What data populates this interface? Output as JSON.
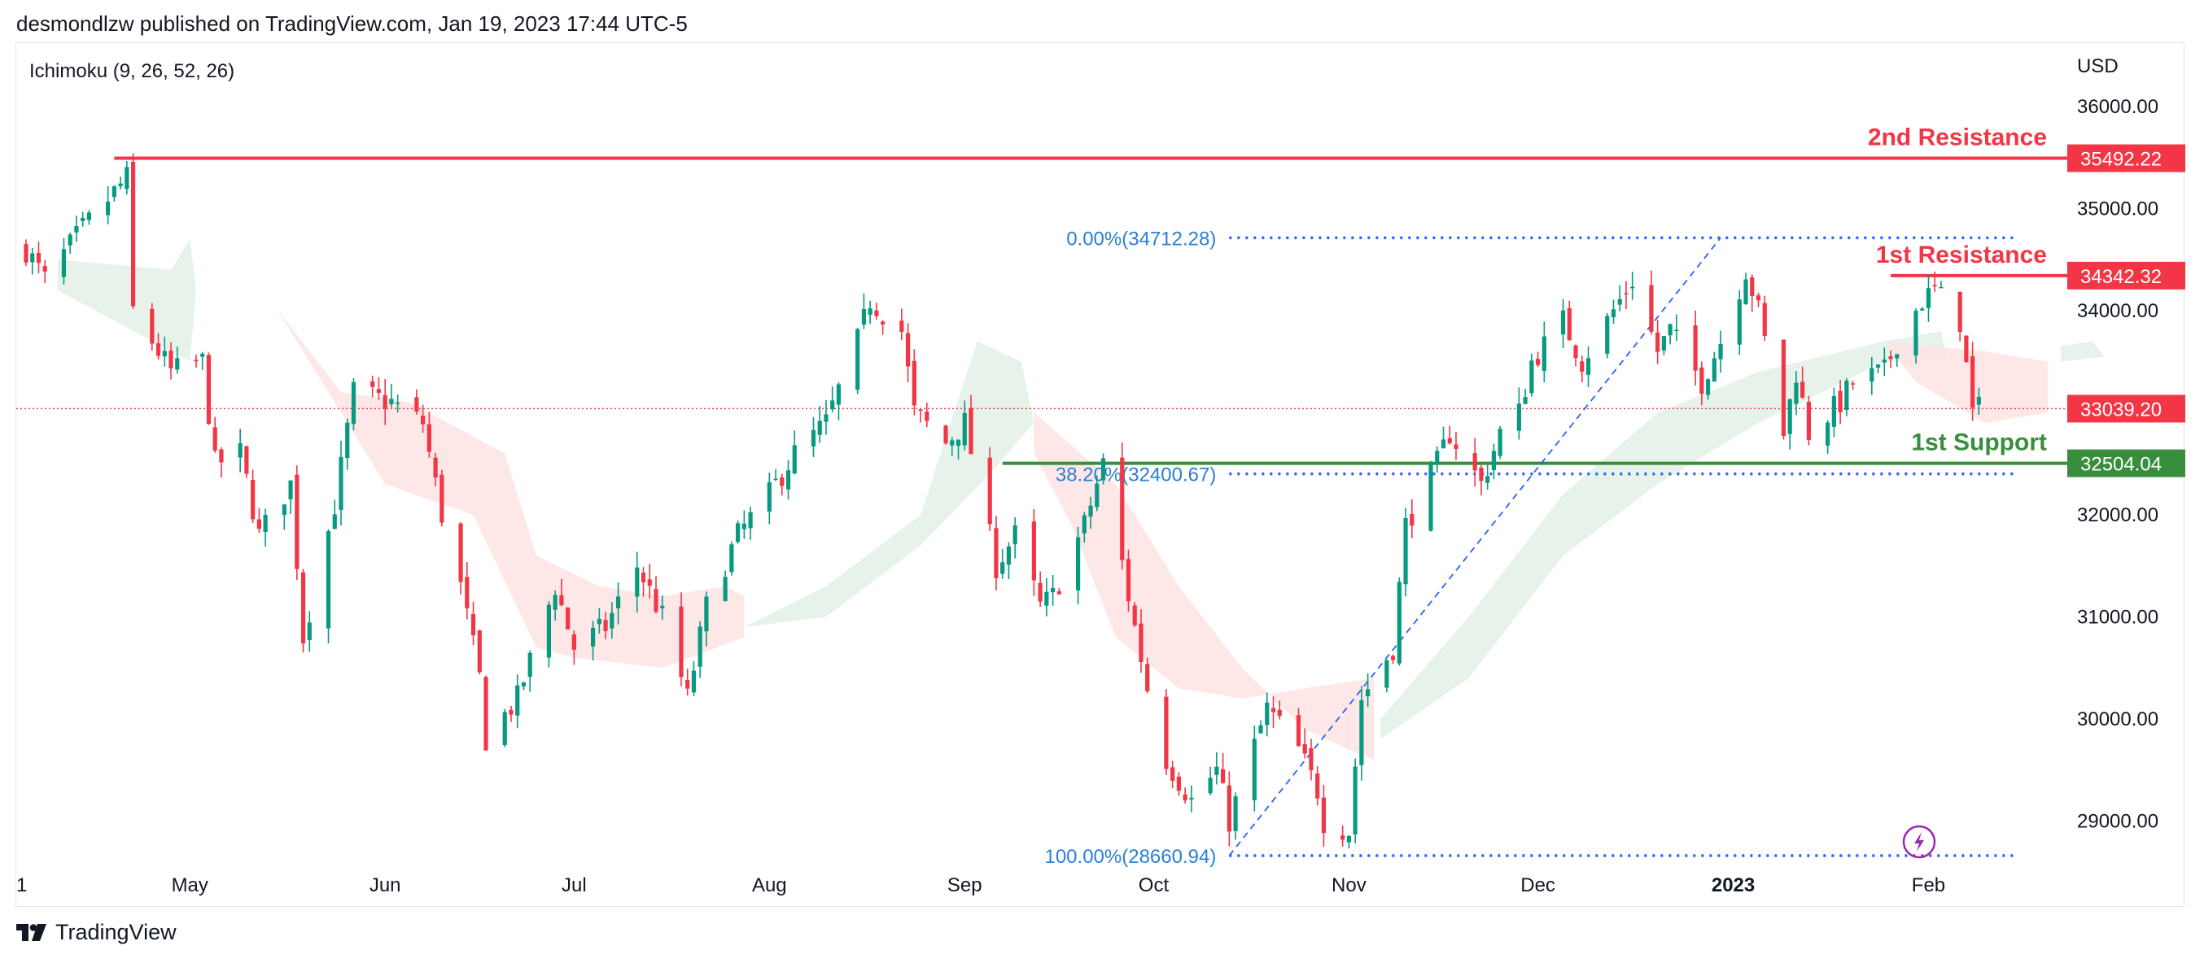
{
  "header": {
    "published": "desmondlzw published on TradingView.com, Jan 19, 2023 17:44 UTC-5"
  },
  "indicator": {
    "label": "Ichimoku (9, 26, 52, 26)"
  },
  "currency": "USD",
  "footer": {
    "brand": "TradingView",
    "logo_icon": "tradingview-logo-icon"
  },
  "colors": {
    "up": "#089981",
    "down": "#f23645",
    "resistance": "#f23645",
    "support": "#388e3c",
    "fib": "#2962ff",
    "fib_text": "#2a7fd6",
    "current": "#f23645",
    "cloud_bull": "#e3f1e6",
    "cloud_bear": "#fde3e3",
    "axis_text": "#131722",
    "logo_icon": "#9c27b0"
  },
  "chart_data": {
    "type": "candlestick",
    "symbol_timeframe": "daily",
    "y_axis": {
      "range": [
        28300,
        36600
      ],
      "ticks": [
        29000,
        30000,
        31000,
        32000,
        33000,
        34000,
        35000,
        36000
      ],
      "tick_labels": [
        "29000.00",
        "30000.00",
        "31000.00",
        "32000.00",
        "33000.00",
        "34000.00",
        "35000.00",
        "36000.00"
      ]
    },
    "x_axis": {
      "start_date": "2022-04-05",
      "end_date": "2023-02-15",
      "tick_labels": [
        {
          "date": "2022-04-01",
          "label": "1",
          "bold": false
        },
        {
          "date": "2022-05-01",
          "label": "May",
          "bold": false
        },
        {
          "date": "2022-06-01",
          "label": "Jun",
          "bold": false
        },
        {
          "date": "2022-07-01",
          "label": "Jul",
          "bold": false
        },
        {
          "date": "2022-08-01",
          "label": "Aug",
          "bold": false
        },
        {
          "date": "2022-09-01",
          "label": "Sep",
          "bold": false
        },
        {
          "date": "2022-10-01",
          "label": "Oct",
          "bold": false
        },
        {
          "date": "2022-11-01",
          "label": "Nov",
          "bold": false
        },
        {
          "date": "2022-12-01",
          "label": "Dec",
          "bold": false
        },
        {
          "date": "2023-01-01",
          "label": "2023",
          "bold": true
        },
        {
          "date": "2023-02-01",
          "label": "Feb",
          "bold": false
        }
      ]
    },
    "price_path": [
      [
        "2022-04-05",
        34600
      ],
      [
        "2022-04-08",
        34300
      ],
      [
        "2022-04-14",
        34800
      ],
      [
        "2022-04-21",
        35300
      ],
      [
        "2022-04-22",
        34000
      ],
      [
        "2022-04-28",
        33400
      ],
      [
        "2022-05-03",
        33500
      ],
      [
        "2022-05-05",
        32500
      ],
      [
        "2022-05-09",
        32600
      ],
      [
        "2022-05-12",
        31800
      ],
      [
        "2022-05-17",
        32300
      ],
      [
        "2022-05-19",
        30800
      ],
      [
        "2022-05-24",
        32100
      ],
      [
        "2022-05-27",
        33200
      ],
      [
        "2022-06-02",
        33100
      ],
      [
        "2022-06-07",
        32900
      ],
      [
        "2022-06-10",
        32000
      ],
      [
        "2022-06-13",
        31300
      ],
      [
        "2022-06-16",
        30400
      ],
      [
        "2022-06-17",
        29800
      ],
      [
        "2022-06-22",
        30200
      ],
      [
        "2022-06-28",
        31300
      ],
      [
        "2022-07-01",
        30700
      ],
      [
        "2022-07-06",
        30900
      ],
      [
        "2022-07-11",
        31500
      ],
      [
        "2022-07-15",
        31000
      ],
      [
        "2022-07-19",
        30200
      ],
      [
        "2022-07-22",
        31100
      ],
      [
        "2022-07-27",
        31800
      ],
      [
        "2022-08-01",
        32200
      ],
      [
        "2022-08-05",
        32600
      ],
      [
        "2022-08-10",
        32900
      ],
      [
        "2022-08-15",
        33700
      ],
      [
        "2022-08-17",
        34100
      ],
      [
        "2022-08-22",
        33800
      ],
      [
        "2022-08-24",
        33000
      ],
      [
        "2022-08-29",
        32700
      ],
      [
        "2022-09-01",
        32900
      ],
      [
        "2022-09-06",
        31500
      ],
      [
        "2022-09-09",
        31800
      ],
      [
        "2022-09-13",
        31100
      ],
      [
        "2022-09-15",
        31200
      ],
      [
        "2022-09-20",
        31900
      ],
      [
        "2022-09-23",
        32500
      ],
      [
        "2022-09-27",
        31200
      ],
      [
        "2022-09-30",
        30300
      ],
      [
        "2022-10-03",
        29600
      ],
      [
        "2022-10-07",
        29200
      ],
      [
        "2022-10-11",
        29500
      ],
      [
        "2022-10-13",
        29000
      ],
      [
        "2022-10-19",
        30100
      ],
      [
        "2022-10-24",
        29700
      ],
      [
        "2022-10-27",
        29300
      ],
      [
        "2022-10-28",
        29000
      ],
      [
        "2022-11-01",
        28900
      ],
      [
        "2022-11-03",
        30200
      ],
      [
        "2022-11-08",
        30700
      ],
      [
        "2022-11-10",
        31900
      ],
      [
        "2022-11-15",
        32500
      ],
      [
        "2022-11-17",
        32800
      ],
      [
        "2022-11-22",
        32300
      ],
      [
        "2022-11-25",
        32800
      ],
      [
        "2022-11-28",
        33000
      ],
      [
        "2022-11-30",
        33500
      ],
      [
        "2022-12-05",
        33900
      ],
      [
        "2022-12-08",
        33500
      ],
      [
        "2022-12-13",
        34000
      ],
      [
        "2022-12-16",
        34300
      ],
      [
        "2022-12-20",
        33600
      ],
      [
        "2022-12-22",
        33800
      ],
      [
        "2022-12-27",
        33300
      ],
      [
        "2022-12-30",
        33700
      ],
      [
        "2023-01-03",
        34400
      ],
      [
        "2023-01-05",
        34000
      ],
      [
        "2023-01-09",
        32800
      ],
      [
        "2023-01-11",
        33400
      ],
      [
        "2023-01-13",
        32800
      ],
      [
        "2023-01-18",
        33100
      ],
      [
        "2023-01-20",
        33300
      ],
      [
        "2023-01-25",
        33400
      ],
      [
        "2023-01-27",
        33700
      ],
      [
        "2023-01-31",
        34100
      ],
      [
        "2023-02-02",
        34200
      ],
      [
        "2023-02-06",
        33900
      ],
      [
        "2023-02-08",
        33000
      ],
      [
        "2023-02-09",
        33039
      ]
    ],
    "ichimoku_cloud": [
      {
        "sentiment": "bull",
        "points": [
          [
            "2022-04-10",
            34500
          ],
          [
            "2022-04-28",
            34400
          ],
          [
            "2022-05-01",
            34700
          ],
          [
            "2022-05-02",
            34200
          ],
          [
            "2022-05-01",
            33500
          ],
          [
            "2022-04-10",
            34200
          ]
        ]
      },
      {
        "sentiment": "bear",
        "points": [
          [
            "2022-05-15",
            34000
          ],
          [
            "2022-05-25",
            33200
          ],
          [
            "2022-06-05",
            33100
          ],
          [
            "2022-06-20",
            32600
          ],
          [
            "2022-06-25",
            31600
          ],
          [
            "2022-07-05",
            31300
          ],
          [
            "2022-07-15",
            31200
          ],
          [
            "2022-07-25",
            31300
          ],
          [
            "2022-07-28",
            31200
          ],
          [
            "2022-07-28",
            30800
          ],
          [
            "2022-07-15",
            30500
          ],
          [
            "2022-07-01",
            30600
          ],
          [
            "2022-06-25",
            30700
          ],
          [
            "2022-06-15",
            32000
          ],
          [
            "2022-06-01",
            32300
          ],
          [
            "2022-05-25",
            33000
          ]
        ]
      },
      {
        "sentiment": "bull",
        "points": [
          [
            "2022-07-28",
            30900
          ],
          [
            "2022-08-10",
            31300
          ],
          [
            "2022-08-25",
            32000
          ],
          [
            "2022-09-03",
            33700
          ],
          [
            "2022-09-10",
            33500
          ],
          [
            "2022-09-12",
            32900
          ],
          [
            "2022-09-05",
            32400
          ],
          [
            "2022-08-25",
            31700
          ],
          [
            "2022-08-10",
            31000
          ]
        ]
      },
      {
        "sentiment": "bear",
        "points": [
          [
            "2022-09-12",
            33000
          ],
          [
            "2022-09-25",
            32300
          ],
          [
            "2022-10-05",
            31300
          ],
          [
            "2022-10-15",
            30500
          ],
          [
            "2022-10-25",
            29900
          ],
          [
            "2022-11-01",
            29700
          ],
          [
            "2022-11-05",
            29600
          ],
          [
            "2022-11-05",
            30400
          ],
          [
            "2022-10-25",
            30300
          ],
          [
            "2022-10-15",
            30200
          ],
          [
            "2022-10-05",
            30300
          ],
          [
            "2022-09-25",
            30800
          ],
          [
            "2022-09-18",
            31900
          ],
          [
            "2022-09-12",
            32600
          ]
        ]
      },
      {
        "sentiment": "bull",
        "points": [
          [
            "2022-11-06",
            30000
          ],
          [
            "2022-11-20",
            31000
          ],
          [
            "2022-12-05",
            32200
          ],
          [
            "2022-12-20",
            33000
          ],
          [
            "2023-01-05",
            33400
          ],
          [
            "2023-01-25",
            33700
          ],
          [
            "2023-02-03",
            33800
          ],
          [
            "2023-02-04",
            33500
          ],
          [
            "2023-01-25",
            33500
          ],
          [
            "2023-01-05",
            32900
          ],
          [
            "2022-12-20",
            32300
          ],
          [
            "2022-12-05",
            31600
          ],
          [
            "2022-11-20",
            30400
          ],
          [
            "2022-11-06",
            29800
          ]
        ]
      },
      {
        "sentiment": "bear",
        "points": [
          [
            "2023-01-25",
            33700
          ],
          [
            "2023-02-10",
            33600
          ],
          [
            "2023-02-20",
            33500
          ],
          [
            "2023-02-20",
            33000
          ],
          [
            "2023-02-10",
            32900
          ],
          [
            "2023-01-30",
            33300
          ]
        ]
      },
      {
        "sentiment": "bull",
        "points": [
          [
            "2023-02-22",
            33650
          ],
          [
            "2023-02-27",
            33700
          ],
          [
            "2023-03-01",
            33550
          ],
          [
            "2023-02-22",
            33500
          ]
        ]
      }
    ],
    "horizontal_levels": [
      {
        "name": "2nd Resistance",
        "price": 35492.22,
        "price_label": "35492.22",
        "from_date": "2022-04-19",
        "color_key": "resistance"
      },
      {
        "name": "1st Resistance",
        "price": 34342.32,
        "price_label": "34342.32",
        "from_date": "2023-01-26",
        "color_key": "resistance"
      },
      {
        "name": "1st Support",
        "price": 32504.04,
        "price_label": "32504.04",
        "from_date": "2022-09-07",
        "color_key": "support"
      }
    ],
    "fibonacci": {
      "start": {
        "date": "2022-10-13",
        "price": 28660.94
      },
      "end": {
        "date": "2022-12-30",
        "price": 34712.28
      },
      "extend_to": "2023-02-15",
      "levels": [
        {
          "label": "0.00%(34712.28)",
          "price": 34712.28
        },
        {
          "label": "38.20%(32400.67)",
          "price": 32400.67
        },
        {
          "label": "100.00%(28660.94)",
          "price": 28660.94
        }
      ]
    },
    "current_price": {
      "price": 33039.2,
      "label": "33039.20"
    }
  }
}
